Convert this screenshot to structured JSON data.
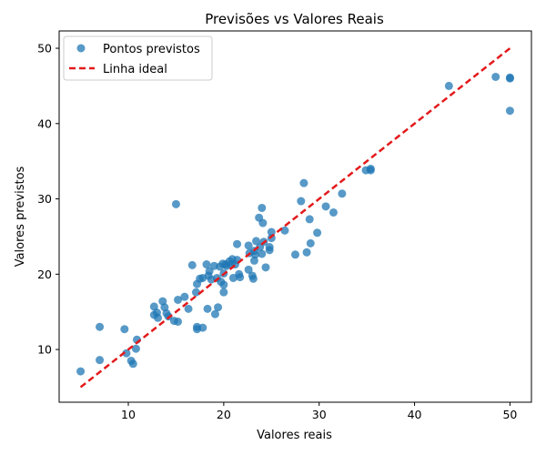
{
  "chart_data": {
    "type": "scatter",
    "title": "Previsões vs Valores Reais",
    "xlabel": "Valores reais",
    "ylabel": "Valores previstos",
    "xlim": [
      2.75,
      52.25
    ],
    "ylim": [
      3.0,
      52.3
    ],
    "xticks": [
      10,
      20,
      30,
      40,
      50
    ],
    "yticks": [
      10,
      20,
      30,
      40,
      50
    ],
    "grid": false,
    "legend_position": "top-left",
    "colors": {
      "points": "#1f77b4",
      "ideal_line": "#e31a1c"
    },
    "series": [
      {
        "name": "Pontos previstos",
        "kind": "scatter",
        "points": [
          [
            5.0,
            7.1
          ],
          [
            7.0,
            13.0
          ],
          [
            7.0,
            8.6
          ],
          [
            9.6,
            12.7
          ],
          [
            9.8,
            9.5
          ],
          [
            10.3,
            8.5
          ],
          [
            10.5,
            8.1
          ],
          [
            10.8,
            10.1
          ],
          [
            10.9,
            11.3
          ],
          [
            12.7,
            15.7
          ],
          [
            12.7,
            14.6
          ],
          [
            13.0,
            14.9
          ],
          [
            13.1,
            14.2
          ],
          [
            13.6,
            16.4
          ],
          [
            13.8,
            15.6
          ],
          [
            14.0,
            14.8
          ],
          [
            14.2,
            14.4
          ],
          [
            14.8,
            13.8
          ],
          [
            15.0,
            29.3
          ],
          [
            15.2,
            16.6
          ],
          [
            15.2,
            13.7
          ],
          [
            15.9,
            17.0
          ],
          [
            16.3,
            15.4
          ],
          [
            16.7,
            21.2
          ],
          [
            17.1,
            17.6
          ],
          [
            17.2,
            18.7
          ],
          [
            17.2,
            13.0
          ],
          [
            17.2,
            12.7
          ],
          [
            17.5,
            19.4
          ],
          [
            17.8,
            19.5
          ],
          [
            17.8,
            12.9
          ],
          [
            18.2,
            21.3
          ],
          [
            18.3,
            15.4
          ],
          [
            18.4,
            19.8
          ],
          [
            18.5,
            20.4
          ],
          [
            18.7,
            19.3
          ],
          [
            19.0,
            21.1
          ],
          [
            19.1,
            14.7
          ],
          [
            19.3,
            19.5
          ],
          [
            19.4,
            15.6
          ],
          [
            19.6,
            21.0
          ],
          [
            19.7,
            19.0
          ],
          [
            19.9,
            21.4
          ],
          [
            20.0,
            20.1
          ],
          [
            20.0,
            18.6
          ],
          [
            20.0,
            17.6
          ],
          [
            20.2,
            21.3
          ],
          [
            20.3,
            21.1
          ],
          [
            20.6,
            21.7
          ],
          [
            20.8,
            21.3
          ],
          [
            20.9,
            22.0
          ],
          [
            21.0,
            19.5
          ],
          [
            21.2,
            21.3
          ],
          [
            21.4,
            21.9
          ],
          [
            21.4,
            24.0
          ],
          [
            21.6,
            20.0
          ],
          [
            21.7,
            19.6
          ],
          [
            22.6,
            23.8
          ],
          [
            22.6,
            20.6
          ],
          [
            22.7,
            22.8
          ],
          [
            23.0,
            19.8
          ],
          [
            23.1,
            19.4
          ],
          [
            23.2,
            23.1
          ],
          [
            23.2,
            21.8
          ],
          [
            23.3,
            22.6
          ],
          [
            23.4,
            24.4
          ],
          [
            23.7,
            27.5
          ],
          [
            23.8,
            23.6
          ],
          [
            24.0,
            22.7
          ],
          [
            24.0,
            28.8
          ],
          [
            24.1,
            26.8
          ],
          [
            24.2,
            24.3
          ],
          [
            24.4,
            20.9
          ],
          [
            24.8,
            23.2
          ],
          [
            24.8,
            23.6
          ],
          [
            25.0,
            25.6
          ],
          [
            25.0,
            24.8
          ],
          [
            26.4,
            25.8
          ],
          [
            27.5,
            22.6
          ],
          [
            28.1,
            29.7
          ],
          [
            28.4,
            32.1
          ],
          [
            28.7,
            22.9
          ],
          [
            29.0,
            27.3
          ],
          [
            29.1,
            24.1
          ],
          [
            29.8,
            25.5
          ],
          [
            30.7,
            29.0
          ],
          [
            31.5,
            28.2
          ],
          [
            32.4,
            30.7
          ],
          [
            34.9,
            33.8
          ],
          [
            35.4,
            34.0
          ],
          [
            35.4,
            33.8
          ],
          [
            43.6,
            45.0
          ],
          [
            48.5,
            46.2
          ],
          [
            50.0,
            46.1
          ],
          [
            50.0,
            46.0
          ],
          [
            50.0,
            41.7
          ]
        ]
      },
      {
        "name": "Linha ideal",
        "kind": "line",
        "style": "dashed",
        "points": [
          [
            5.0,
            5.0
          ],
          [
            50.0,
            50.0
          ]
        ]
      }
    ]
  }
}
